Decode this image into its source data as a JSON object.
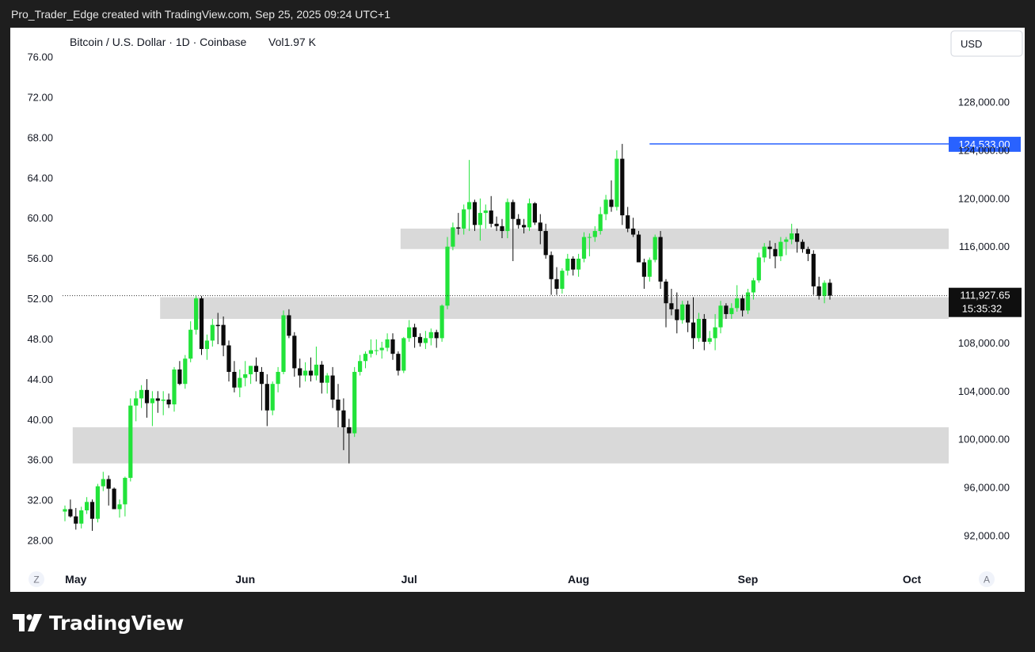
{
  "header": {
    "caption": "Pro_Trader_Edge created with TradingView.com, Sep 25, 2025 09:24 UTC+1"
  },
  "footer": {
    "brand_name": "TradingView",
    "brand_icon": "tradingview-logo-icon"
  },
  "colors": {
    "up": "#22e33a",
    "down": "#0b0b0b",
    "zone": "#d9d9d9",
    "ath_line": "#2962ff",
    "text": "#131722",
    "background": "#ffffff"
  },
  "chart_data": {
    "type": "candlestick",
    "title": "Bitcoin / U.S. Dollar · 1D · Coinbase",
    "volume_label": "Vol",
    "volume_value": "1.97 K",
    "currency_button": "USD",
    "left_axis": {
      "ticks": [
        "76.00",
        "72.00",
        "68.00",
        "64.00",
        "60.00",
        "56.00",
        "52.00",
        "48.00",
        "44.00",
        "40.00",
        "36.00",
        "32.00",
        "28.00"
      ]
    },
    "right_axis": {
      "ticks": [
        "128,000.00",
        "124,000.00",
        "120,000.00",
        "116,000.00",
        "108,000.00",
        "104,000.00",
        "100,000.00",
        "96,000.00",
        "92,000.00"
      ]
    },
    "x_labels": [
      "May",
      "Jun",
      "Jul",
      "Aug",
      "Sep",
      "Oct"
    ],
    "ylim": [
      89500,
      133000
    ],
    "start_date": "2025-04-29",
    "last_price": {
      "label": "111,927.65",
      "countdown": "15:35:32",
      "value": 111928
    },
    "ath": {
      "label": "124,533.00",
      "value": 124533,
      "from_index": 107
    },
    "zones": [
      {
        "from_index": 18,
        "to": "right",
        "low": 110000,
        "high": 111800
      },
      {
        "from_index": 62,
        "to": "right",
        "low": 115800,
        "high": 117500
      },
      {
        "from_index": 2,
        "to": "right",
        "low": 98000,
        "high": 101000
      }
    ],
    "candles": [
      [
        94000,
        94500,
        93200,
        94200
      ],
      [
        94200,
        95000,
        93500,
        93600
      ],
      [
        93600,
        94300,
        92500,
        93000
      ],
      [
        93000,
        94400,
        92600,
        94100
      ],
      [
        94100,
        95200,
        93800,
        94800
      ],
      [
        94800,
        95000,
        92400,
        93400
      ],
      [
        93400,
        96300,
        93100,
        96100
      ],
      [
        96100,
        97300,
        95700,
        96700
      ],
      [
        96700,
        97000,
        94500,
        95900
      ],
      [
        95900,
        96000,
        94400,
        94200
      ],
      [
        94200,
        95000,
        93500,
        94600
      ],
      [
        94600,
        96900,
        93600,
        96800
      ],
      [
        96800,
        103400,
        96500,
        102800
      ],
      [
        102800,
        104000,
        101500,
        103400
      ],
      [
        103400,
        104500,
        102600,
        104100
      ],
      [
        104100,
        105000,
        101800,
        103000
      ],
      [
        103000,
        104000,
        101100,
        103400
      ],
      [
        103400,
        104000,
        102200,
        103200
      ],
      [
        103200,
        104000,
        102000,
        103300
      ],
      [
        103300,
        103800,
        102600,
        102900
      ],
      [
        102900,
        106000,
        102300,
        105800
      ],
      [
        105800,
        106500,
        104500,
        104600
      ],
      [
        104600,
        107000,
        104200,
        106700
      ],
      [
        106700,
        109800,
        106400,
        109100
      ],
      [
        109100,
        111900,
        108700,
        111700
      ],
      [
        111700,
        111900,
        107000,
        107500
      ],
      [
        107500,
        108700,
        106600,
        108200
      ],
      [
        108200,
        110000,
        107700,
        109500
      ],
      [
        109500,
        110500,
        107900,
        109400
      ],
      [
        109500,
        110200,
        106900,
        107800
      ],
      [
        107800,
        108200,
        104800,
        105600
      ],
      [
        105600,
        106500,
        103900,
        104300
      ],
      [
        104300,
        105800,
        103500,
        105100
      ],
      [
        105100,
        106500,
        104400,
        105400
      ],
      [
        105400,
        106100,
        104600,
        106100
      ],
      [
        106100,
        106800,
        104800,
        105600
      ],
      [
        105600,
        106000,
        102400,
        104600
      ],
      [
        104600,
        105400,
        101100,
        102400
      ],
      [
        102400,
        104800,
        102000,
        104600
      ],
      [
        104600,
        106000,
        103900,
        105600
      ],
      [
        105600,
        110700,
        105400,
        110300
      ],
      [
        110300,
        110800,
        108400,
        108600
      ],
      [
        108600,
        108900,
        105200,
        105900
      ],
      [
        105900,
        106700,
        104300,
        105300
      ],
      [
        105300,
        106400,
        104800,
        105700
      ],
      [
        105700,
        106800,
        104800,
        105300
      ],
      [
        105300,
        107700,
        104900,
        106200
      ],
      [
        106200,
        106500,
        103800,
        104700
      ],
      [
        104700,
        105500,
        103800,
        105300
      ],
      [
        105300,
        106000,
        102600,
        103300
      ],
      [
        103300,
        104600,
        101000,
        102400
      ],
      [
        102400,
        103400,
        99100,
        101000
      ],
      [
        101000,
        101700,
        98000,
        100500
      ],
      [
        100500,
        106000,
        100200,
        105600
      ],
      [
        105600,
        107000,
        105300,
        106500
      ],
      [
        106500,
        107300,
        105900,
        107100
      ],
      [
        107100,
        108300,
        106800,
        107400
      ],
      [
        107400,
        108300,
        107000,
        107400
      ],
      [
        107400,
        108100,
        106700,
        107600
      ],
      [
        107600,
        108800,
        107300,
        108300
      ],
      [
        108300,
        108800,
        106600,
        107100
      ],
      [
        107100,
        107300,
        105300,
        105700
      ],
      [
        105700,
        108500,
        105500,
        108400
      ],
      [
        108400,
        109900,
        108100,
        109300
      ],
      [
        109300,
        109600,
        107600,
        108500
      ],
      [
        108500,
        108800,
        107700,
        108000
      ],
      [
        108000,
        109000,
        107500,
        108400
      ],
      [
        108400,
        109200,
        107800,
        108900
      ],
      [
        108900,
        109100,
        107600,
        108400
      ],
      [
        108400,
        111200,
        108100,
        111100
      ],
      [
        111100,
        116800,
        110800,
        116000
      ],
      [
        116000,
        118000,
        115700,
        117600
      ],
      [
        117600,
        118800,
        117000,
        117500
      ],
      [
        117500,
        119500,
        117000,
        119100
      ],
      [
        119100,
        123200,
        117300,
        119700
      ],
      [
        119700,
        119900,
        117300,
        117800
      ],
      [
        117800,
        120000,
        116500,
        118800
      ],
      [
        118800,
        119500,
        117500,
        119000
      ],
      [
        119000,
        120200,
        117600,
        117900
      ],
      [
        117900,
        118500,
        117300,
        117700
      ],
      [
        117700,
        118300,
        116700,
        117300
      ],
      [
        117300,
        120000,
        116700,
        119700
      ],
      [
        119700,
        119900,
        114800,
        118300
      ],
      [
        118300,
        118700,
        117500,
        117800
      ],
      [
        117800,
        118300,
        117100,
        117600
      ],
      [
        117600,
        120000,
        117300,
        119600
      ],
      [
        119600,
        119700,
        117800,
        118000
      ],
      [
        118000,
        118700,
        116200,
        117300
      ],
      [
        117300,
        117900,
        115000,
        115300
      ],
      [
        115300,
        115600,
        112000,
        113300
      ],
      [
        113300,
        114300,
        112000,
        112500
      ],
      [
        112500,
        114200,
        112100,
        114000
      ],
      [
        114000,
        115400,
        113600,
        115000
      ],
      [
        115000,
        115200,
        113600,
        114100
      ],
      [
        114100,
        115400,
        113500,
        115000
      ],
      [
        115000,
        117200,
        114700,
        116800
      ],
      [
        116800,
        117100,
        115200,
        116800
      ],
      [
        116800,
        117700,
        116400,
        117300
      ],
      [
        117300,
        119300,
        117000,
        118700
      ],
      [
        118700,
        120300,
        118200,
        119900
      ],
      [
        119900,
        121500,
        118900,
        119300
      ],
      [
        119300,
        124000,
        119000,
        123300
      ],
      [
        123300,
        124533,
        117800,
        118600
      ],
      [
        118600,
        119300,
        117200,
        117500
      ],
      [
        117500,
        118400,
        116800,
        117000
      ],
      [
        117000,
        117300,
        114800,
        114700
      ],
      [
        114700,
        115000,
        112500,
        113500
      ],
      [
        113500,
        115100,
        113100,
        114900
      ],
      [
        114900,
        117000,
        114700,
        116800
      ],
      [
        116800,
        117300,
        112500,
        113100
      ],
      [
        113100,
        113300,
        109300,
        111300
      ],
      [
        111300,
        112500,
        110300,
        110800
      ],
      [
        110800,
        112200,
        108800,
        109900
      ],
      [
        109900,
        111500,
        109600,
        111200
      ],
      [
        111200,
        111500,
        108900,
        109700
      ],
      [
        109700,
        111800,
        107500,
        108400
      ],
      [
        108400,
        110500,
        108100,
        110000
      ],
      [
        110000,
        110400,
        107400,
        108100
      ],
      [
        108100,
        109000,
        107900,
        108400
      ],
      [
        108400,
        110400,
        107400,
        109300
      ],
      [
        109300,
        111500,
        108800,
        111100
      ],
      [
        111100,
        111300,
        110000,
        110400
      ],
      [
        110400,
        111300,
        110000,
        110900
      ],
      [
        110900,
        112800,
        110600,
        111700
      ],
      [
        111700,
        112000,
        110200,
        110700
      ],
      [
        110700,
        112500,
        110400,
        112200
      ],
      [
        112200,
        113400,
        111600,
        113200
      ],
      [
        113200,
        115500,
        113000,
        115100
      ],
      [
        115100,
        116300,
        114700,
        116000
      ],
      [
        116000,
        116500,
        115000,
        115800
      ],
      [
        115800,
        116300,
        114200,
        115200
      ],
      [
        115200,
        116800,
        114800,
        116400
      ],
      [
        116400,
        116800,
        115300,
        116600
      ],
      [
        116600,
        117900,
        116200,
        117100
      ],
      [
        117100,
        117500,
        115500,
        116400
      ],
      [
        116400,
        116600,
        115500,
        115800
      ],
      [
        115800,
        116000,
        114800,
        115400
      ],
      [
        115400,
        115700,
        112000,
        112700
      ],
      [
        112700,
        113500,
        111600,
        111900
      ],
      [
        111900,
        113200,
        111300,
        113000
      ],
      [
        113000,
        113300,
        111600,
        111928
      ]
    ]
  }
}
